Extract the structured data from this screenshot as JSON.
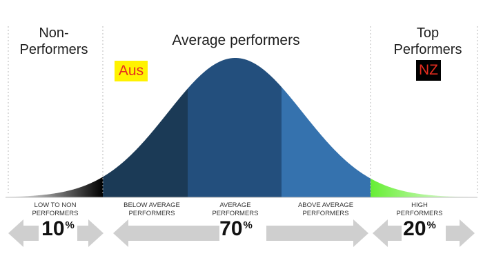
{
  "headers": {
    "left": [
      "Non-",
      "Performers"
    ],
    "center": "Average performers",
    "right": [
      "Top",
      "Performers"
    ]
  },
  "badges": [
    {
      "text": "Aus",
      "text_color": "#e52d1f",
      "bg_color": "#fff200"
    },
    {
      "text": "NZ",
      "text_color": "#e52d1f",
      "bg_color": "#000000"
    }
  ],
  "segments": [
    {
      "label": [
        "LOW to NON",
        "PERFORMERS"
      ],
      "color": "#000000"
    },
    {
      "label": [
        "BELOW AVERAGE",
        "PERFORMERS"
      ],
      "color": "#1b3a56"
    },
    {
      "label": [
        "AVERAGE",
        "PERFORMERS"
      ],
      "color": "#234f7d"
    },
    {
      "label": [
        "ABOVE AVERAGE",
        "PERFORMERS"
      ],
      "color": "#3572ae"
    },
    {
      "label": [
        "HIGH",
        "PERFORMERS"
      ],
      "color": "#66ee33"
    }
  ],
  "percentages": [
    {
      "value": "10",
      "symbol": "%"
    },
    {
      "value": "70",
      "symbol": "%"
    },
    {
      "value": "20",
      "symbol": "%"
    }
  ],
  "colors": {
    "arrow": "#cfcfcf",
    "divider": "#b8b8b8",
    "baseline": "#bcbcbc"
  }
}
